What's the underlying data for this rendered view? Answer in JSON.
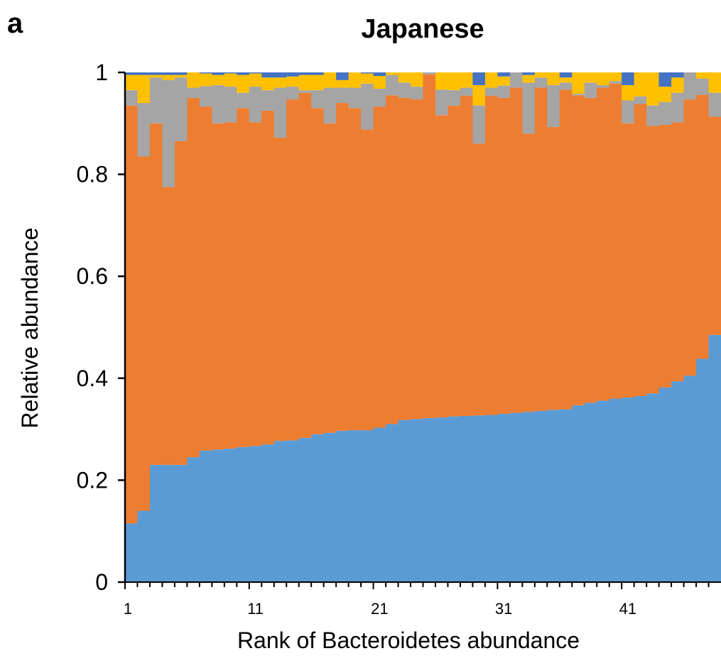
{
  "panel_label": "a",
  "chart_data": {
    "type": "bar",
    "stacked": true,
    "title": "Japanese",
    "xlabel": "Rank of Bacteroidetes abundance",
    "ylabel": "Relative abundance",
    "ylim": [
      0,
      1
    ],
    "yticks": [
      0,
      0.2,
      0.4,
      0.6,
      0.8,
      1
    ],
    "ytick_labels": [
      "0",
      "0.2",
      "0.4",
      "0.6",
      "0.8",
      "1"
    ],
    "xtick_labels": [
      {
        "rank": 1,
        "label": "1"
      },
      {
        "rank": 11,
        "label": "11"
      },
      {
        "rank": 21,
        "label": "21"
      },
      {
        "rank": 31,
        "label": "31"
      },
      {
        "rank": 41,
        "label": "41"
      }
    ],
    "categories": [
      1,
      2,
      3,
      4,
      5,
      6,
      7,
      8,
      9,
      10,
      11,
      12,
      13,
      14,
      15,
      16,
      17,
      18,
      19,
      20,
      21,
      22,
      23,
      24,
      25,
      26,
      27,
      28,
      29,
      30,
      31,
      32,
      33,
      34,
      35,
      36,
      37,
      38,
      39,
      40,
      41,
      42,
      43,
      44,
      45,
      46,
      47,
      48
    ],
    "colors": [
      "#5B9BD5",
      "#ED7D31",
      "#A5A5A5",
      "#FFC000",
      "#4472C4"
    ],
    "series": [
      {
        "values": [
          0.115,
          0.14,
          0.23,
          0.23,
          0.23,
          0.245,
          0.258,
          0.26,
          0.262,
          0.265,
          0.267,
          0.27,
          0.277,
          0.278,
          0.283,
          0.29,
          0.293,
          0.297,
          0.298,
          0.298,
          0.303,
          0.31,
          0.318,
          0.32,
          0.322,
          0.323,
          0.325,
          0.326,
          0.327,
          0.328,
          0.33,
          0.332,
          0.334,
          0.336,
          0.338,
          0.339,
          0.347,
          0.352,
          0.356,
          0.36,
          0.362,
          0.365,
          0.37,
          0.382,
          0.394,
          0.405,
          0.438,
          0.485
        ]
      },
      {
        "values": [
          0.82,
          0.695,
          0.67,
          0.545,
          0.635,
          0.705,
          0.675,
          0.64,
          0.64,
          0.665,
          0.635,
          0.655,
          0.595,
          0.669,
          0.677,
          0.64,
          0.607,
          0.643,
          0.632,
          0.59,
          0.63,
          0.645,
          0.632,
          0.627,
          0.674,
          0.593,
          0.61,
          0.628,
          0.533,
          0.626,
          0.62,
          0.638,
          0.546,
          0.634,
          0.555,
          0.627,
          0.608,
          0.598,
          0.614,
          0.618,
          0.538,
          0.573,
          0.525,
          0.515,
          0.508,
          0.542,
          0.518,
          0.428
        ]
      },
      {
        "values": [
          0.03,
          0.105,
          0.09,
          0.21,
          0.125,
          0.02,
          0.04,
          0.075,
          0.07,
          0.03,
          0.07,
          0.04,
          0.098,
          0.025,
          0.005,
          0.035,
          0.07,
          0.03,
          0.04,
          0.09,
          0.035,
          0.04,
          0.03,
          0.025,
          0.005,
          0.05,
          0.03,
          0.016,
          0.075,
          0.016,
          0.024,
          0.03,
          0.1,
          0.02,
          0.082,
          0.014,
          0.003,
          0.03,
          0.005,
          0.005,
          0.045,
          0.015,
          0.04,
          0.045,
          0.058,
          0.058,
          0.032,
          0.047
        ]
      },
      {
        "values": [
          0.03,
          0.055,
          0.005,
          0.01,
          0.005,
          0.03,
          0.025,
          0.02,
          0.026,
          0.035,
          0.026,
          0.025,
          0.02,
          0.02,
          0.03,
          0.03,
          0.03,
          0.015,
          0.03,
          0.02,
          0.025,
          0.005,
          0.02,
          0.028,
          0.005,
          0.034,
          0.035,
          0.03,
          0.04,
          0.03,
          0.018,
          0.0,
          0.015,
          0.01,
          0.025,
          0.01,
          0.042,
          0.02,
          0.025,
          0.017,
          0.03,
          0.047,
          0.065,
          0.03,
          0.03,
          0.0,
          0.012,
          0.04
        ]
      },
      {
        "values": [
          0.005,
          0.005,
          0.005,
          0.005,
          0.005,
          0.0,
          0.002,
          0.005,
          0.002,
          0.005,
          0.002,
          0.01,
          0.01,
          0.008,
          0.005,
          0.005,
          0.0,
          0.015,
          0.0,
          0.002,
          0.007,
          0.0,
          0.0,
          0.0,
          0.0,
          0.0,
          0.0,
          0.0,
          0.025,
          0.0,
          0.008,
          0.0,
          0.005,
          0.0,
          0.0,
          0.01,
          0.0,
          0.0,
          0.0,
          0.0,
          0.025,
          0.0,
          0.0,
          0.028,
          0.01,
          0.0,
          0.0,
          0.0
        ]
      }
    ]
  }
}
